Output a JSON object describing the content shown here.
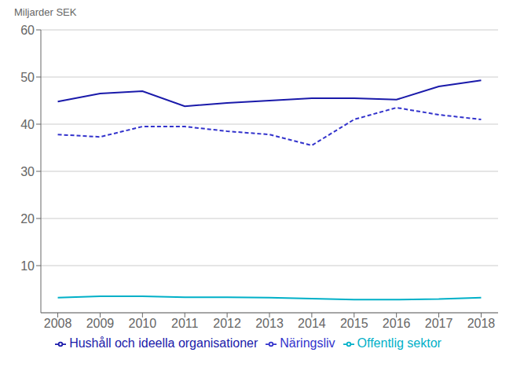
{
  "chart_data": {
    "type": "line",
    "y_label": "Miljarder SEK",
    "x": [
      2008,
      2009,
      2010,
      2011,
      2012,
      2013,
      2014,
      2015,
      2016,
      2017,
      2018
    ],
    "xlim": [
      2007.6,
      2018.4
    ],
    "xticks": [
      2008,
      2009,
      2010,
      2011,
      2012,
      2013,
      2014,
      2015,
      2016,
      2017,
      2018
    ],
    "ylim": [
      0,
      60
    ],
    "yticks": [
      10,
      20,
      30,
      40,
      50,
      60
    ],
    "grid": true,
    "legend": "bottom",
    "series": [
      {
        "name": "Hushåll och ideella organisationer",
        "color": "#1a1aaa",
        "line_style": "solid",
        "values": [
          44.8,
          46.5,
          47.0,
          43.8,
          44.5,
          45.0,
          45.5,
          45.5,
          45.2,
          48.0,
          49.3
        ]
      },
      {
        "name": "Näringsliv",
        "color": "#3333cc",
        "line_style": "dashed",
        "values": [
          37.8,
          37.3,
          39.5,
          39.5,
          38.5,
          37.8,
          35.5,
          41.0,
          43.5,
          42.0,
          41.0
        ]
      },
      {
        "name": "Offentlig sektor",
        "color": "#00b0c8",
        "line_style": "solid",
        "values": [
          3.2,
          3.5,
          3.5,
          3.3,
          3.3,
          3.2,
          3.0,
          2.8,
          2.8,
          2.9,
          3.2
        ]
      }
    ]
  }
}
